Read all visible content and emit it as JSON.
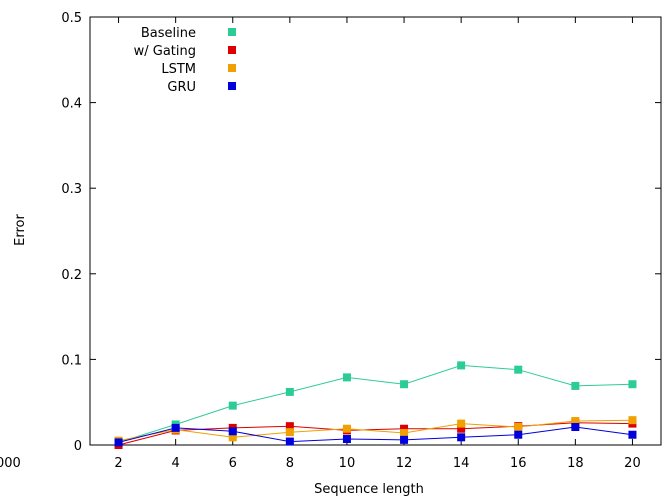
{
  "chart_data": {
    "type": "line",
    "title": "",
    "xlabel": "Sequence length",
    "ylabel": "Error",
    "xlim": [
      1,
      21
    ],
    "ylim": [
      0,
      0.5
    ],
    "x_ticks": [
      2,
      4,
      6,
      8,
      10,
      12,
      14,
      16,
      18,
      20
    ],
    "y_ticks": [
      0,
      0.1,
      0.2,
      0.3,
      0.4,
      0.5
    ],
    "y_tick_labels": [
      "0",
      "0.1",
      "0.2",
      "0.3",
      "0.4",
      "0.5"
    ],
    "x_axis_min_label": "000",
    "grid": false,
    "legend_position": "top-left",
    "x": [
      2,
      4,
      6,
      8,
      10,
      12,
      14,
      16,
      18,
      20
    ],
    "series": [
      {
        "name": "Baseline",
        "color": "#2ecc95",
        "values": [
          0.003,
          0.024,
          0.046,
          0.062,
          0.079,
          0.071,
          0.093,
          0.088,
          0.069,
          0.071
        ]
      },
      {
        "name": "w/ Gating",
        "color": "#dd0000",
        "values": [
          0.0,
          0.017,
          0.02,
          0.022,
          0.017,
          0.019,
          0.019,
          0.022,
          0.026,
          0.025
        ]
      },
      {
        "name": "LSTM",
        "color": "#f0a000",
        "values": [
          0.005,
          0.018,
          0.009,
          0.015,
          0.019,
          0.014,
          0.025,
          0.021,
          0.028,
          0.029
        ]
      },
      {
        "name": "GRU",
        "color": "#0000dd",
        "values": [
          0.003,
          0.02,
          0.016,
          0.004,
          0.007,
          0.006,
          0.009,
          0.012,
          0.021,
          0.012
        ]
      }
    ]
  }
}
